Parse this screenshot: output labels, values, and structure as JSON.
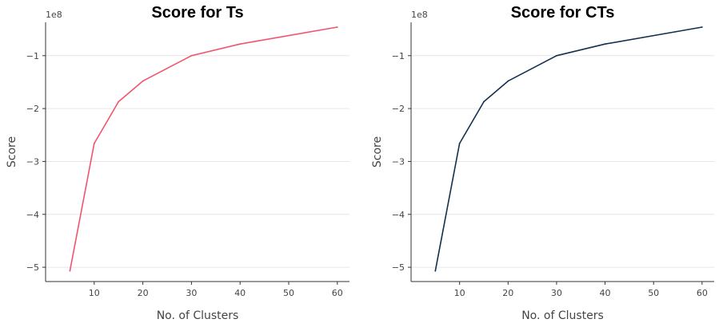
{
  "chart_data": [
    {
      "type": "line",
      "title": "Score for Ts",
      "xlabel": "No. of Clusters",
      "ylabel": "Score",
      "y_offset_label": "1e8",
      "x": [
        5,
        10,
        15,
        20,
        30,
        40,
        60
      ],
      "series": [
        {
          "values": [
            -5.07,
            -2.66,
            -1.87,
            -1.48,
            -1.0,
            -0.78,
            -0.46
          ],
          "color": "#f0556d"
        }
      ],
      "xlim": [
        0,
        62.5
      ],
      "ylim": [
        -5.27,
        -0.37
      ],
      "xticks": [
        10,
        20,
        30,
        40,
        50,
        60
      ],
      "xtick_labels": [
        "10",
        "20",
        "30",
        "40",
        "50",
        "60"
      ],
      "yticks": [
        -5,
        -4,
        -3,
        -2,
        -1
      ],
      "ytick_labels": [
        "−5",
        "−4",
        "−3",
        "−2",
        "−1"
      ],
      "grid": "horizontal"
    },
    {
      "type": "line",
      "title": "Score for CTs",
      "xlabel": "No. of Clusters",
      "ylabel": "Score",
      "y_offset_label": "1e8",
      "x": [
        5,
        10,
        15,
        20,
        30,
        40,
        60
      ],
      "series": [
        {
          "values": [
            -5.07,
            -2.66,
            -1.87,
            -1.48,
            -1.0,
            -0.78,
            -0.46
          ],
          "color": "#13304d"
        }
      ],
      "xlim": [
        0,
        62.5
      ],
      "ylim": [
        -5.27,
        -0.37
      ],
      "xticks": [
        10,
        20,
        30,
        40,
        50,
        60
      ],
      "xtick_labels": [
        "10",
        "20",
        "30",
        "40",
        "50",
        "60"
      ],
      "yticks": [
        -5,
        -4,
        -3,
        -2,
        -1
      ],
      "ytick_labels": [
        "−5",
        "−4",
        "−3",
        "−2",
        "−1"
      ],
      "grid": "horizontal"
    }
  ]
}
